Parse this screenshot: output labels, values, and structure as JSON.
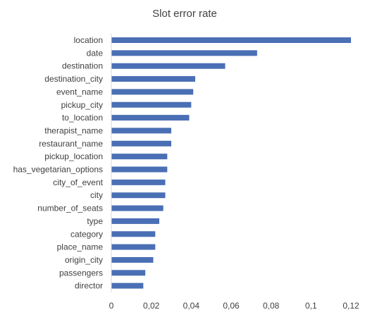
{
  "chart_data": {
    "type": "bar",
    "orientation": "horizontal",
    "title": "Slot error rate",
    "xlabel": "",
    "ylabel": "",
    "categories": [
      "location",
      "date",
      "destination",
      "destination_city",
      "event_name",
      "pickup_city",
      "to_location",
      "therapist_name",
      "restaurant_name",
      "pickup_location",
      "has_vegetarian_options",
      "city_of_event",
      "city",
      "number_of_seats",
      "type",
      "category",
      "place_name",
      "origin_city",
      "passengers",
      "director"
    ],
    "values": [
      0.121,
      0.073,
      0.057,
      0.042,
      0.041,
      0.04,
      0.039,
      0.03,
      0.03,
      0.028,
      0.028,
      0.027,
      0.027,
      0.026,
      0.024,
      0.022,
      0.022,
      0.021,
      0.017,
      0.016
    ],
    "xlim": [
      0,
      0.12
    ],
    "xticks": [
      0,
      0.02,
      0.04,
      0.06,
      0.08,
      0.1,
      0.12
    ],
    "xtick_labels": [
      "0",
      "0,02",
      "0,04",
      "0,06",
      "0,08",
      "0,1",
      "0,12"
    ],
    "grid": false,
    "legend": "none",
    "bar_color": "#4a6fb5"
  }
}
